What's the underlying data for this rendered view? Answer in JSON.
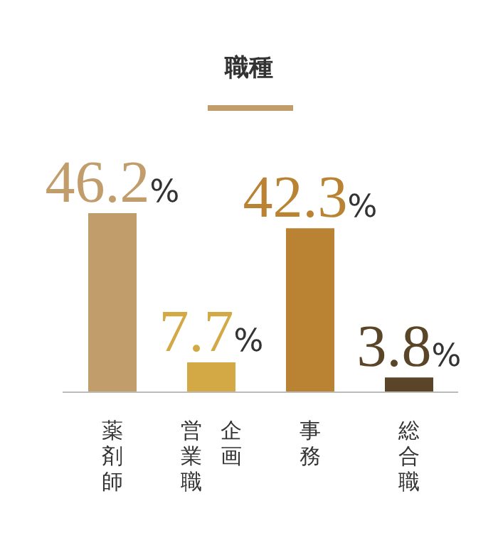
{
  "chart_data": {
    "type": "bar",
    "title": "職種",
    "categories": [
      "薬剤師",
      "企画営業職",
      "事務",
      "総合職"
    ],
    "values": [
      46.2,
      7.7,
      42.3,
      3.8
    ],
    "colors": [
      "#c19d6c",
      "#d3a945",
      "#b98333",
      "#5b4528"
    ],
    "value_labels": [
      "46.2%",
      "7.7%",
      "42.3%",
      "3.8%"
    ],
    "grid": false,
    "legend": false
  }
}
